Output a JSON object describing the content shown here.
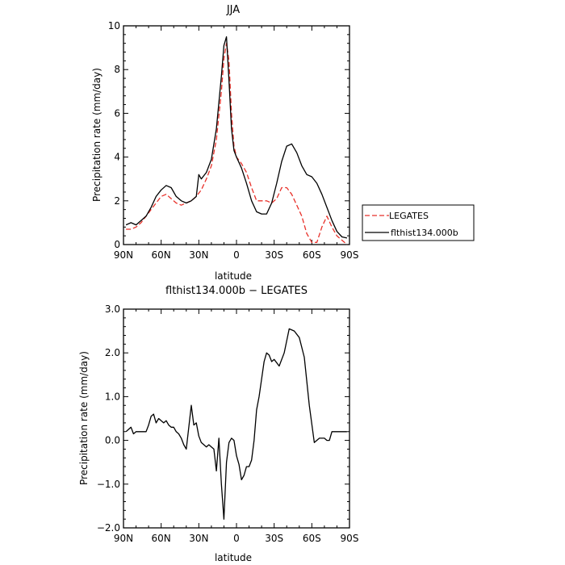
{
  "chart_data": [
    {
      "type": "line",
      "title": "JJA",
      "xlabel": "latitude",
      "ylabel": "Precipitation rate  (mm/day)",
      "x_tick_labels": [
        "90N",
        "60N",
        "30N",
        "0",
        "30S",
        "60S",
        "90S"
      ],
      "x_tick_values": [
        90,
        60,
        30,
        0,
        -30,
        -60,
        -90
      ],
      "xlim": [
        90,
        -90
      ],
      "ylim": [
        0,
        10
      ],
      "y_ticks": [
        0,
        2,
        4,
        6,
        8,
        10
      ],
      "y_tick_labels": [
        "0",
        "2",
        "4",
        "6",
        "8",
        "10"
      ],
      "grid": false,
      "legend_position": "right of chart",
      "series": [
        {
          "name": "LEGATES",
          "color": "#e8312a",
          "dash": "dashed",
          "x": [
            88,
            84,
            80,
            76,
            72,
            68,
            64,
            60,
            56,
            52,
            48,
            44,
            40,
            36,
            32,
            28,
            24,
            20,
            16,
            12,
            10,
            8,
            6,
            4,
            2,
            0,
            -4,
            -8,
            -12,
            -16,
            -20,
            -24,
            -28,
            -32,
            -36,
            -40,
            -44,
            -48,
            -52,
            -56,
            -60,
            -64,
            -68,
            -72,
            -76,
            -80,
            -84,
            -88
          ],
          "y": [
            0.7,
            0.7,
            0.8,
            1.0,
            1.3,
            1.6,
            1.9,
            2.2,
            2.3,
            2.1,
            1.9,
            1.8,
            1.9,
            2.0,
            2.2,
            2.5,
            3.0,
            3.6,
            4.8,
            7.0,
            8.5,
            9.2,
            8.4,
            6.0,
            4.5,
            4.0,
            3.7,
            3.3,
            2.6,
            2.0,
            2.0,
            2.0,
            1.9,
            2.1,
            2.6,
            2.6,
            2.3,
            1.8,
            1.3,
            0.5,
            0.1,
            0.1,
            0.8,
            1.3,
            0.8,
            0.4,
            0.2,
            0.0
          ]
        },
        {
          "name": "flthist134.000b",
          "color": "#000000",
          "dash": "solid",
          "x": [
            88,
            84,
            80,
            76,
            72,
            68,
            64,
            60,
            56,
            52,
            48,
            44,
            40,
            36,
            32,
            30,
            28,
            24,
            20,
            16,
            12,
            10,
            8,
            6,
            4,
            2,
            0,
            -4,
            -8,
            -12,
            -16,
            -20,
            -24,
            -28,
            -32,
            -36,
            -40,
            -44,
            -48,
            -52,
            -56,
            -60,
            -64,
            -68,
            -72,
            -76,
            -80,
            -84,
            -88
          ],
          "y": [
            0.9,
            1.0,
            0.9,
            1.1,
            1.3,
            1.7,
            2.2,
            2.5,
            2.7,
            2.6,
            2.2,
            2.0,
            1.9,
            2.0,
            2.2,
            3.2,
            3.0,
            3.3,
            3.9,
            5.3,
            7.7,
            9.1,
            9.5,
            7.5,
            5.3,
            4.3,
            4.0,
            3.5,
            2.8,
            2.0,
            1.5,
            1.4,
            1.4,
            1.9,
            2.8,
            3.8,
            4.5,
            4.6,
            4.2,
            3.6,
            3.2,
            3.1,
            2.8,
            2.3,
            1.7,
            1.1,
            0.6,
            0.35,
            0.3
          ]
        }
      ]
    },
    {
      "type": "line",
      "title": "flthist134.000b  −  LEGATES",
      "xlabel": "latitude",
      "ylabel": "Precipitation rate  (mm/day)",
      "x_tick_labels": [
        "90N",
        "60N",
        "30N",
        "0",
        "30S",
        "60S",
        "90S"
      ],
      "x_tick_values": [
        90,
        60,
        30,
        0,
        -30,
        -60,
        -90
      ],
      "xlim": [
        90,
        -90
      ],
      "ylim": [
        -2,
        3
      ],
      "y_ticks": [
        -2,
        -1,
        0,
        1,
        2,
        3
      ],
      "y_tick_labels": [
        "−2.0",
        "−1.0",
        "0.0",
        "1.0",
        "2.0",
        "3.0"
      ],
      "grid": false,
      "series": [
        {
          "color": "#000000",
          "dash": "solid",
          "x": [
            88,
            86,
            84,
            82,
            80,
            78,
            76,
            72,
            70,
            68,
            66,
            64,
            62,
            60,
            58,
            56,
            54,
            52,
            50,
            48,
            46,
            44,
            42,
            40,
            38,
            36,
            34,
            32,
            30,
            28,
            26,
            24,
            22,
            20,
            18,
            16,
            14,
            12,
            10,
            8,
            6,
            4,
            2,
            0,
            -2,
            -4,
            -6,
            -8,
            -10,
            -12,
            -14,
            -16,
            -18,
            -20,
            -22,
            -24,
            -26,
            -28,
            -30,
            -34,
            -38,
            -42,
            -46,
            -50,
            -54,
            -58,
            -62,
            -66,
            -70,
            -72,
            -74,
            -76,
            -80,
            -84,
            -88
          ],
          "y": [
            0.2,
            0.25,
            0.3,
            0.15,
            0.2,
            0.2,
            0.2,
            0.2,
            0.35,
            0.55,
            0.6,
            0.4,
            0.5,
            0.45,
            0.4,
            0.45,
            0.35,
            0.3,
            0.3,
            0.2,
            0.15,
            0.05,
            -0.1,
            -0.2,
            0.3,
            0.8,
            0.35,
            0.4,
            0.1,
            -0.05,
            -0.1,
            -0.15,
            -0.1,
            -0.15,
            -0.2,
            -0.7,
            0.05,
            -1.0,
            -1.8,
            -0.5,
            -0.05,
            0.05,
            0.0,
            -0.35,
            -0.55,
            -0.9,
            -0.8,
            -0.6,
            -0.6,
            -0.45,
            0.0,
            0.7,
            1.0,
            1.4,
            1.8,
            2.0,
            1.95,
            1.8,
            1.85,
            1.7,
            2.0,
            2.55,
            2.5,
            2.35,
            1.9,
            0.8,
            -0.05,
            0.05,
            0.05,
            0.0,
            0.0,
            0.2,
            0.2,
            0.2,
            0.2
          ]
        }
      ]
    }
  ],
  "legend": {
    "entries": [
      {
        "label": "LEGATES",
        "color": "#e8312a",
        "dash": "dashed"
      },
      {
        "label": "flthist134.000b",
        "color": "#000000",
        "dash": "solid"
      }
    ]
  }
}
